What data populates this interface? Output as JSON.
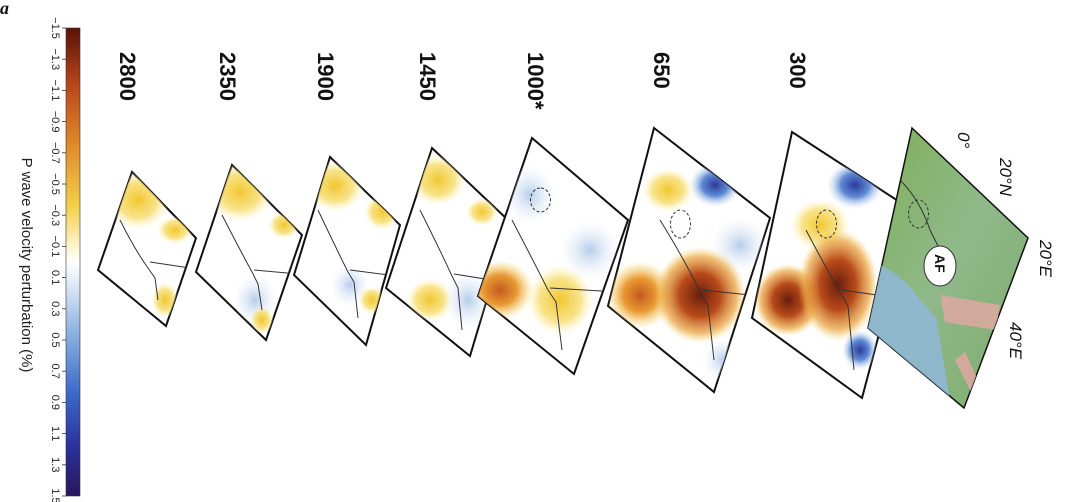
{
  "corner_letter": "a",
  "colorbar": {
    "title": "P wave velocity perturbation (%)",
    "ticks": [
      "−1.5",
      "−1.3",
      "−1.1",
      "−0.9",
      "−0.7",
      "−0.5",
      "−0.3",
      "−0.1",
      "0.1",
      "0.3",
      "0.5",
      "0.7",
      "0.9",
      "1.1",
      "1.3",
      "1.5"
    ],
    "min": -1.5,
    "max": 1.5,
    "color_low": "#5a1a0a",
    "color_mid": "#ffffff",
    "color_high": "#2a1a6a"
  },
  "depth_panels": [
    {
      "label": "2800"
    },
    {
      "label": "2350"
    },
    {
      "label": "1900"
    },
    {
      "label": "1450"
    },
    {
      "label": "1000*"
    },
    {
      "label": "650"
    },
    {
      "label": "300"
    }
  ],
  "base_map": {
    "labels": [
      "0°",
      "20°N",
      "20°E",
      "40°E"
    ],
    "region_label": "AF",
    "color_land": "#6aa84f",
    "color_sea": "#8fb7d8"
  }
}
